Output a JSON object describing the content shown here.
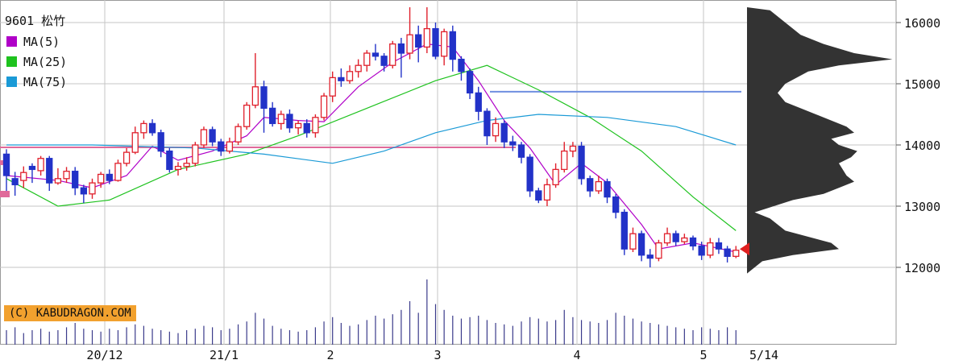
{
  "legend": {
    "title": "9601 松竹",
    "items": [
      {
        "label": "MA(5)",
        "color": "#b000c8"
      },
      {
        "label": "MA(25)",
        "color": "#1ec21e"
      },
      {
        "label": "MA(75)",
        "color": "#1a9ad6"
      }
    ]
  },
  "credit": "(C) KABUDRAGON.COM",
  "colors": {
    "up": "#e0202c",
    "down": "#2232c8",
    "profile": "#333333",
    "volume": "#3a3a8a",
    "grid": "#c6c6c6",
    "hline_blue": "#6f8fe0",
    "hline_pink": "#e06a9a",
    "marker": "#e02020"
  },
  "chart_data": {
    "type": "candlestick",
    "title": "9601 松竹",
    "y_ticks": [
      "12000",
      "13000",
      "14000",
      "15000",
      "16000"
    ],
    "ylim": [
      11100,
      16400
    ],
    "x_ticks": [
      "20/12",
      "21/1",
      "2",
      "3",
      "4",
      "5",
      "5/14"
    ],
    "current_marker": 12300,
    "hlines": [
      {
        "value": 14870,
        "color": "blue"
      },
      {
        "value": 13960,
        "color": "pink"
      }
    ],
    "candles": [
      [
        13850,
        13500,
        13930,
        13250
      ],
      [
        13450,
        13350,
        13560,
        13170
      ],
      [
        13420,
        13550,
        13650,
        13300
      ],
      [
        13650,
        13600,
        13700,
        13380
      ],
      [
        13580,
        13780,
        13820,
        13500
      ],
      [
        13780,
        13380,
        13820,
        13250
      ],
      [
        13380,
        13450,
        13620,
        13350
      ],
      [
        13450,
        13570,
        13640,
        13380
      ],
      [
        13570,
        13300,
        13640,
        13180
      ],
      [
        13300,
        13200,
        13350,
        13050
      ],
      [
        13200,
        13380,
        13450,
        13120
      ],
      [
        13380,
        13520,
        13560,
        13300
      ],
      [
        13520,
        13420,
        13600,
        13360
      ],
      [
        13420,
        13700,
        13760,
        13400
      ],
      [
        13700,
        13880,
        13950,
        13650
      ],
      [
        13880,
        14200,
        14300,
        13850
      ],
      [
        14200,
        14350,
        14400,
        14100
      ],
      [
        14350,
        14200,
        14420,
        14150
      ],
      [
        14200,
        13900,
        14250,
        13800
      ],
      [
        13900,
        13600,
        13950,
        13550
      ],
      [
        13600,
        13650,
        13720,
        13500
      ],
      [
        13650,
        13700,
        13800,
        13580
      ],
      [
        13700,
        14000,
        14050,
        13650
      ],
      [
        14000,
        14250,
        14300,
        13950
      ],
      [
        14250,
        14050,
        14300,
        13980
      ],
      [
        14050,
        13900,
        14100,
        13820
      ],
      [
        13900,
        14050,
        14120,
        13860
      ],
      [
        14050,
        14300,
        14350,
        14000
      ],
      [
        14300,
        14650,
        14700,
        14250
      ],
      [
        14650,
        14950,
        15500,
        14600
      ],
      [
        14950,
        14600,
        15050,
        14200
      ],
      [
        14600,
        14350,
        14700,
        14300
      ],
      [
        14350,
        14500,
        14560,
        14250
      ],
      [
        14500,
        14280,
        14580,
        14200
      ],
      [
        14280,
        14350,
        14400,
        14170
      ],
      [
        14350,
        14200,
        14420,
        14120
      ],
      [
        14200,
        14450,
        14500,
        14120
      ],
      [
        14450,
        14800,
        14850,
        14400
      ],
      [
        14800,
        15100,
        15200,
        14700
      ],
      [
        15100,
        15050,
        15250,
        14950
      ],
      [
        15050,
        15200,
        15300,
        15000
      ],
      [
        15200,
        15300,
        15400,
        15100
      ],
      [
        15300,
        15500,
        15550,
        15200
      ],
      [
        15500,
        15450,
        15650,
        15380
      ],
      [
        15450,
        15300,
        15500,
        15200
      ],
      [
        15300,
        15650,
        15700,
        15250
      ],
      [
        15650,
        15500,
        15750,
        15100
      ],
      [
        15500,
        15800,
        16250,
        15400
      ],
      [
        15800,
        15600,
        15950,
        15350
      ],
      [
        15600,
        15900,
        16250,
        15500
      ],
      [
        15900,
        15450,
        16000,
        15400
      ],
      [
        15450,
        15850,
        15900,
        15300
      ],
      [
        15850,
        15400,
        15950,
        15200
      ],
      [
        15400,
        15200,
        15450,
        15050
      ],
      [
        15200,
        14850,
        15250,
        14750
      ],
      [
        14850,
        14550,
        14950,
        14400
      ],
      [
        14550,
        14150,
        14600,
        14000
      ],
      [
        14150,
        14350,
        14450,
        14050
      ],
      [
        14350,
        14050,
        14400,
        13950
      ],
      [
        14050,
        14000,
        14150,
        13900
      ],
      [
        14000,
        13800,
        14050,
        13700
      ],
      [
        13800,
        13250,
        13850,
        13150
      ],
      [
        13250,
        13100,
        13300,
        13050
      ],
      [
        13100,
        13350,
        13450,
        13000
      ],
      [
        13350,
        13600,
        13700,
        13300
      ],
      [
        13600,
        13900,
        14050,
        13550
      ],
      [
        13900,
        13980,
        14050,
        13800
      ],
      [
        13980,
        13450,
        14050,
        13350
      ],
      [
        13450,
        13250,
        13500,
        13150
      ],
      [
        13250,
        13400,
        13500,
        13200
      ],
      [
        13400,
        13150,
        13450,
        13050
      ],
      [
        13150,
        12900,
        13200,
        12800
      ],
      [
        12900,
        12300,
        12950,
        12200
      ],
      [
        12300,
        12550,
        12650,
        12250
      ],
      [
        12550,
        12200,
        12600,
        12100
      ],
      [
        12200,
        12150,
        12300,
        12000
      ],
      [
        12150,
        12400,
        12450,
        12100
      ],
      [
        12400,
        12550,
        12650,
        12350
      ],
      [
        12550,
        12420,
        12600,
        12350
      ],
      [
        12420,
        12480,
        12550,
        12380
      ],
      [
        12480,
        12350,
        12520,
        12280
      ],
      [
        12350,
        12200,
        12420,
        12120
      ],
      [
        12200,
        12400,
        12480,
        12150
      ],
      [
        12400,
        12300,
        12480,
        12220
      ],
      [
        12300,
        12180,
        12350,
        12080
      ],
      [
        12180,
        12280,
        12350,
        12150
      ]
    ],
    "volumes": [
      1.0,
      1.2,
      0.8,
      1.0,
      1.1,
      0.9,
      1.0,
      1.2,
      1.5,
      1.1,
      1.0,
      0.9,
      1.1,
      1.0,
      1.2,
      1.4,
      1.3,
      1.1,
      1.0,
      0.9,
      0.8,
      1.0,
      1.1,
      1.3,
      1.2,
      1.0,
      1.1,
      1.4,
      1.6,
      2.2,
      1.8,
      1.3,
      1.1,
      1.0,
      0.9,
      1.0,
      1.2,
      1.6,
      1.9,
      1.5,
      1.3,
      1.4,
      1.7,
      2.0,
      1.8,
      2.1,
      2.4,
      3.0,
      2.2,
      4.5,
      2.8,
      2.4,
      2.0,
      1.8,
      1.9,
      2.0,
      1.7,
      1.5,
      1.4,
      1.3,
      1.6,
      1.9,
      1.8,
      1.6,
      1.7,
      2.4,
      1.9,
      1.7,
      1.6,
      1.5,
      1.7,
      2.2,
      2.0,
      1.8,
      1.6,
      1.5,
      1.4,
      1.3,
      1.2,
      1.1,
      1.0,
      1.2,
      1.1,
      1.0,
      1.2,
      1.0
    ],
    "ma_series": [
      {
        "name": "MA(5)",
        "values": [
          [
            0,
            13500
          ],
          [
            6,
            13420
          ],
          [
            10,
            13300
          ],
          [
            14,
            13500
          ],
          [
            17,
            13980
          ],
          [
            20,
            13750
          ],
          [
            24,
            13900
          ],
          [
            28,
            14150
          ],
          [
            30,
            14450
          ],
          [
            34,
            14400
          ],
          [
            37,
            14380
          ],
          [
            41,
            14950
          ],
          [
            45,
            15350
          ],
          [
            49,
            15650
          ],
          [
            52,
            15600
          ],
          [
            55,
            15050
          ],
          [
            58,
            14400
          ],
          [
            61,
            13950
          ],
          [
            64,
            13350
          ],
          [
            67,
            13700
          ],
          [
            70,
            13380
          ],
          [
            74,
            12700
          ],
          [
            76,
            12300
          ],
          [
            80,
            12400
          ],
          [
            85,
            12250
          ]
        ]
      },
      {
        "name": "MA(25)",
        "values": [
          [
            0,
            13450
          ],
          [
            6,
            13000
          ],
          [
            12,
            13100
          ],
          [
            20,
            13600
          ],
          [
            28,
            13850
          ],
          [
            34,
            14150
          ],
          [
            42,
            14600
          ],
          [
            50,
            15050
          ],
          [
            56,
            15300
          ],
          [
            62,
            14900
          ],
          [
            68,
            14450
          ],
          [
            74,
            13900
          ],
          [
            80,
            13150
          ],
          [
            85,
            12600
          ]
        ]
      },
      {
        "name": "MA(75)",
        "values": [
          [
            0,
            14000
          ],
          [
            10,
            14000
          ],
          [
            22,
            13950
          ],
          [
            30,
            13850
          ],
          [
            38,
            13700
          ],
          [
            44,
            13900
          ],
          [
            50,
            14200
          ],
          [
            56,
            14400
          ],
          [
            62,
            14500
          ],
          [
            70,
            14450
          ],
          [
            78,
            14300
          ],
          [
            85,
            14000
          ]
        ]
      }
    ],
    "volume_profile": [
      [
        16200,
        0.15
      ],
      [
        16000,
        0.25
      ],
      [
        15800,
        0.35
      ],
      [
        15650,
        0.5
      ],
      [
        15500,
        0.7
      ],
      [
        15400,
        0.95
      ],
      [
        15300,
        0.6
      ],
      [
        15200,
        0.4
      ],
      [
        15000,
        0.25
      ],
      [
        14850,
        0.2
      ],
      [
        14700,
        0.25
      ],
      [
        14600,
        0.35
      ],
      [
        14500,
        0.45
      ],
      [
        14300,
        0.65
      ],
      [
        14200,
        0.7
      ],
      [
        14100,
        0.55
      ],
      [
        14000,
        0.6
      ],
      [
        13900,
        0.72
      ],
      [
        13800,
        0.68
      ],
      [
        13700,
        0.6
      ],
      [
        13500,
        0.65
      ],
      [
        13400,
        0.7
      ],
      [
        13300,
        0.6
      ],
      [
        13200,
        0.5
      ],
      [
        13100,
        0.3
      ],
      [
        12900,
        0.05
      ],
      [
        12800,
        0.15
      ],
      [
        12600,
        0.25
      ],
      [
        12500,
        0.4
      ],
      [
        12400,
        0.55
      ],
      [
        12300,
        0.6
      ],
      [
        12200,
        0.3
      ],
      [
        12100,
        0.1
      ],
      [
        12000,
        0.05
      ]
    ]
  }
}
